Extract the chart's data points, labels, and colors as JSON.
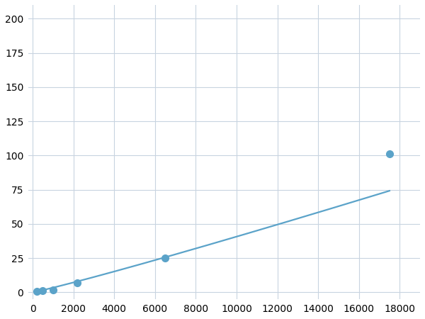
{
  "x": [
    200,
    500,
    1000,
    2200,
    6500,
    17500
  ],
  "y": [
    1.0,
    1.5,
    2.0,
    7.0,
    25.0,
    101.0
  ],
  "marker_x": [
    200,
    500,
    1000,
    2200,
    6500,
    17500
  ],
  "marker_y": [
    1.0,
    1.5,
    2.0,
    7.0,
    25.0,
    101.0
  ],
  "line_color": "#5ba3c9",
  "marker_color": "#5ba3c9",
  "marker_size": 7,
  "line_width": 1.6,
  "xlim": [
    -200,
    19000
  ],
  "ylim": [
    -5,
    210
  ],
  "xticks": [
    0,
    2000,
    4000,
    6000,
    8000,
    10000,
    12000,
    14000,
    16000,
    18000
  ],
  "yticks": [
    0,
    25,
    50,
    75,
    100,
    125,
    150,
    175,
    200
  ],
  "grid_color": "#c8d4e0",
  "background_color": "#ffffff",
  "figsize": [
    6.0,
    4.5
  ],
  "dpi": 100
}
